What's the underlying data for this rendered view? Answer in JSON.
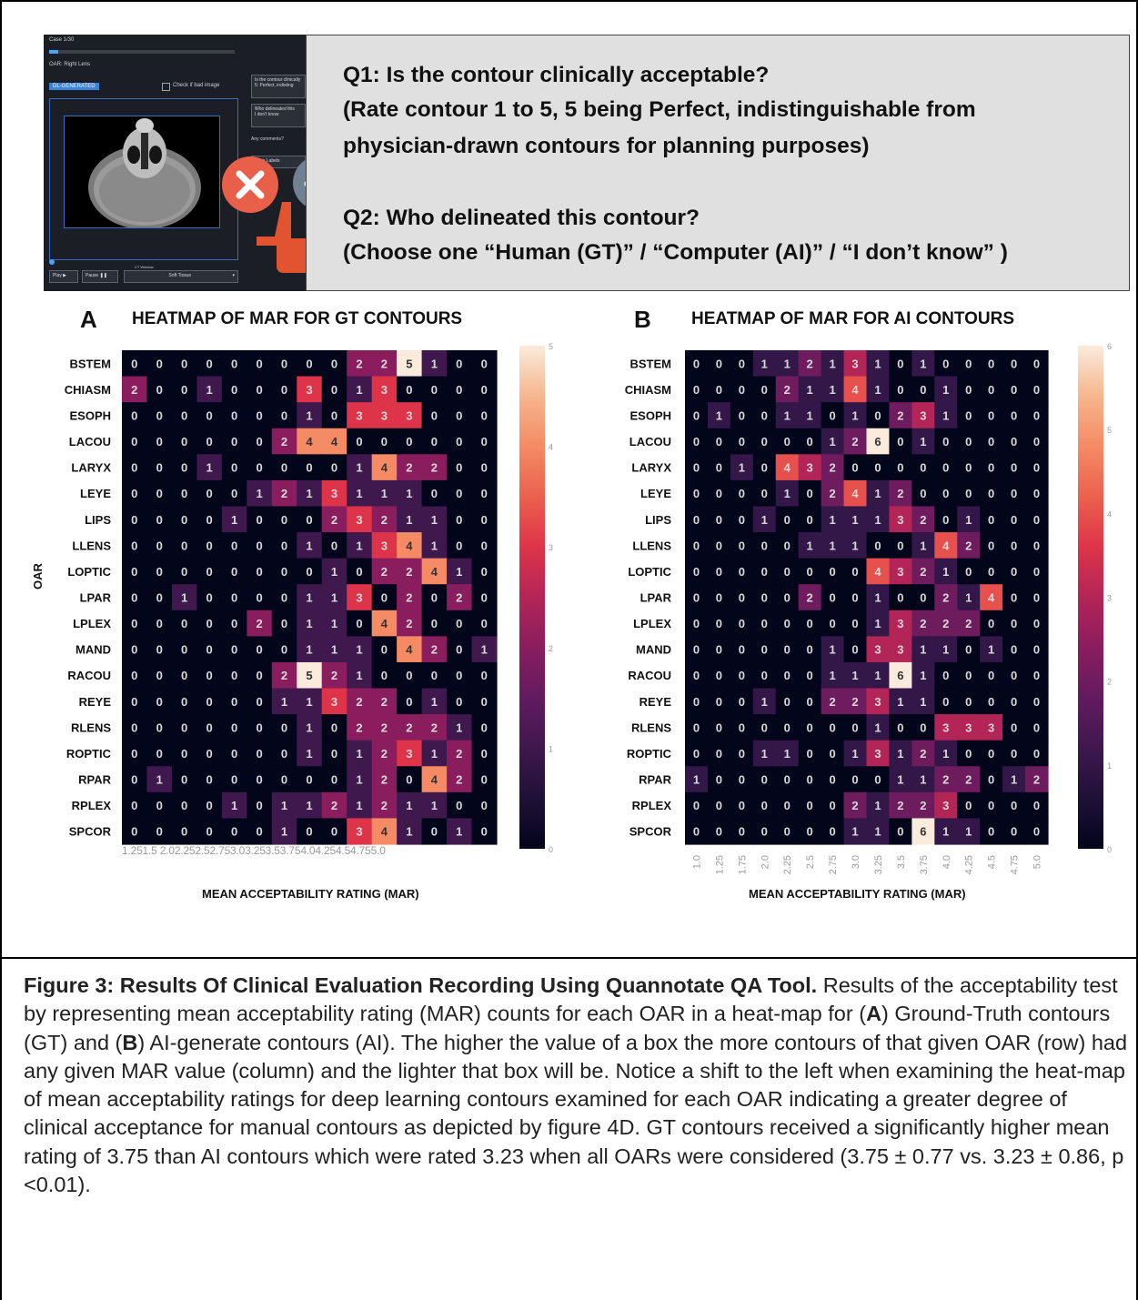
{
  "tool": {
    "case": "Case 1/30",
    "oar": "OAR: Right Lens",
    "tag": "DL-GENERATED",
    "checkbox": "Check if bad image",
    "q_small1": "Is the contour clinically",
    "q_small2": "5: Perfect, indisting",
    "q_small3": "Who delineated this",
    "q_small4": "I don't know",
    "q_small5": "Any comments?",
    "save": "Save Labels",
    "play": "Play ▶",
    "pause": "Pause ❚❚",
    "window": "Soft Tissue",
    "window_label": "CT Window"
  },
  "questions": {
    "q1_line1": "Q1: Is the contour clinically acceptable?",
    "q1_line2": "(Rate contour 1 to 5, 5 being Perfect, indistinguishable from",
    "q1_line3": "physician-drawn contours for planning purposes)",
    "q2_line1": "Q2: Who delineated this contour?",
    "q2_line2": "(Choose one “Human (GT)” / “Computer (AI)” / “I don’t know” )"
  },
  "colors": {
    "reject": "#e8604a",
    "accept": "#6f8192",
    "hand": "#e2542f"
  },
  "chart_data": [
    {
      "type": "heatmap",
      "panel": "A",
      "title": "HEATMAP OF MAR FOR GT CONTOURS",
      "xlabel": "MEAN ACCEPTABILITY RATING (MAR)",
      "ylabel": "OAR",
      "x": [
        "1.25",
        "1.5",
        "2.0",
        "2.25",
        "2.5",
        "2.75",
        "3.0",
        "3.25",
        "3.5",
        "3.75",
        "4.0",
        "4.25",
        "4.5",
        "4.75",
        "5.0"
      ],
      "y": [
        "BSTEM",
        "CHIASM",
        "ESOPH",
        "LACOU",
        "LARYX",
        "LEYE",
        "LIPS",
        "LLENS",
        "LOPTIC",
        "LPAR",
        "LPLEX",
        "MAND",
        "RACOU",
        "REYE",
        "RLENS",
        "ROPTIC",
        "RPAR",
        "RPLEX",
        "SPCOR"
      ],
      "values": [
        [
          0,
          0,
          0,
          0,
          0,
          0,
          0,
          0,
          0,
          2,
          2,
          5,
          1,
          0,
          0
        ],
        [
          2,
          0,
          0,
          1,
          0,
          0,
          0,
          3,
          0,
          1,
          3,
          0,
          0,
          0,
          0
        ],
        [
          0,
          0,
          0,
          0,
          0,
          0,
          0,
          1,
          0,
          3,
          3,
          3,
          0,
          0,
          0
        ],
        [
          0,
          0,
          0,
          0,
          0,
          0,
          2,
          4,
          4,
          0,
          0,
          0,
          0,
          0,
          0
        ],
        [
          0,
          0,
          0,
          1,
          0,
          0,
          0,
          0,
          0,
          1,
          4,
          2,
          2,
          0,
          0
        ],
        [
          0,
          0,
          0,
          0,
          0,
          1,
          2,
          1,
          3,
          1,
          1,
          1,
          0,
          0,
          0
        ],
        [
          0,
          0,
          0,
          0,
          1,
          0,
          0,
          0,
          2,
          3,
          2,
          1,
          1,
          0,
          0
        ],
        [
          0,
          0,
          0,
          0,
          0,
          0,
          0,
          1,
          0,
          1,
          3,
          4,
          1,
          0,
          0
        ],
        [
          0,
          0,
          0,
          0,
          0,
          0,
          0,
          0,
          1,
          0,
          2,
          2,
          4,
          1,
          0
        ],
        [
          0,
          0,
          1,
          0,
          0,
          0,
          0,
          1,
          1,
          3,
          0,
          2,
          0,
          2,
          0
        ],
        [
          0,
          0,
          0,
          0,
          0,
          2,
          0,
          1,
          1,
          0,
          4,
          2,
          0,
          0,
          0
        ],
        [
          0,
          0,
          0,
          0,
          0,
          0,
          0,
          1,
          1,
          1,
          0,
          4,
          2,
          0,
          1
        ],
        [
          0,
          0,
          0,
          0,
          0,
          0,
          2,
          5,
          2,
          1,
          0,
          0,
          0,
          0,
          0
        ],
        [
          0,
          0,
          0,
          0,
          0,
          0,
          1,
          1,
          3,
          2,
          2,
          0,
          1,
          0,
          0
        ],
        [
          0,
          0,
          0,
          0,
          0,
          0,
          0,
          1,
          0,
          2,
          2,
          2,
          2,
          1,
          0
        ],
        [
          0,
          0,
          0,
          0,
          0,
          0,
          0,
          1,
          0,
          1,
          2,
          3,
          1,
          2,
          0
        ],
        [
          0,
          1,
          0,
          0,
          0,
          0,
          0,
          0,
          0,
          1,
          2,
          0,
          4,
          2,
          0
        ],
        [
          0,
          0,
          0,
          0,
          1,
          0,
          1,
          1,
          2,
          1,
          2,
          1,
          1,
          0,
          0
        ],
        [
          0,
          0,
          0,
          0,
          0,
          0,
          1,
          0,
          0,
          3,
          4,
          1,
          0,
          1,
          0
        ]
      ],
      "colorbar": {
        "min": 0,
        "max": 5,
        "ticks": [
          "5",
          "4",
          "3",
          "2",
          "1",
          "0"
        ]
      },
      "x_tick_text": "1.251.5 2.02.252.52.753.03.253.53.754.04.254.54.755.0"
    },
    {
      "type": "heatmap",
      "panel": "B",
      "title": "HEATMAP OF MAR FOR AI CONTOURS",
      "xlabel": "MEAN ACCEPTABILITY RATING (MAR)",
      "ylabel": "",
      "x": [
        "1.0",
        "1.25",
        "1.75",
        "2.0",
        "2.25",
        "2.5",
        "2.75",
        "3.0",
        "3.25",
        "3.5",
        "3.75",
        "4.0",
        "4.25",
        "4.5",
        "4.75",
        "5.0"
      ],
      "y": [
        "BSTEM",
        "CHIASM",
        "ESOPH",
        "LACOU",
        "LARYX",
        "LEYE",
        "LIPS",
        "LLENS",
        "LOPTIC",
        "LPAR",
        "LPLEX",
        "MAND",
        "RACOU",
        "REYE",
        "RLENS",
        "ROPTIC",
        "RPAR",
        "RPLEX",
        "SPCOR"
      ],
      "values": [
        [
          0,
          0,
          0,
          1,
          1,
          2,
          1,
          3,
          1,
          0,
          1,
          0,
          0,
          0,
          0,
          0
        ],
        [
          0,
          0,
          0,
          0,
          2,
          1,
          1,
          4,
          1,
          0,
          0,
          1,
          0,
          0,
          0,
          0
        ],
        [
          0,
          1,
          0,
          0,
          1,
          1,
          0,
          1,
          0,
          2,
          3,
          1,
          0,
          0,
          0,
          0
        ],
        [
          0,
          0,
          0,
          0,
          0,
          0,
          1,
          2,
          6,
          0,
          1,
          0,
          0,
          0,
          0,
          0
        ],
        [
          0,
          0,
          1,
          0,
          4,
          3,
          2,
          0,
          0,
          0,
          0,
          0,
          0,
          0,
          0,
          0
        ],
        [
          0,
          0,
          0,
          0,
          1,
          0,
          2,
          4,
          1,
          2,
          0,
          0,
          0,
          0,
          0,
          0
        ],
        [
          0,
          0,
          0,
          1,
          0,
          0,
          1,
          1,
          1,
          3,
          2,
          0,
          1,
          0,
          0,
          0
        ],
        [
          0,
          0,
          0,
          0,
          0,
          1,
          1,
          1,
          0,
          0,
          1,
          4,
          2,
          0,
          0,
          0
        ],
        [
          0,
          0,
          0,
          0,
          0,
          0,
          0,
          0,
          4,
          3,
          2,
          1,
          0,
          0,
          0,
          0
        ],
        [
          0,
          0,
          0,
          0,
          0,
          2,
          0,
          0,
          1,
          0,
          0,
          2,
          1,
          4,
          0,
          0
        ],
        [
          0,
          0,
          0,
          0,
          0,
          0,
          0,
          0,
          1,
          3,
          2,
          2,
          2,
          0,
          0,
          0
        ],
        [
          0,
          0,
          0,
          0,
          0,
          0,
          1,
          0,
          3,
          3,
          1,
          1,
          0,
          1,
          0,
          0
        ],
        [
          0,
          0,
          0,
          0,
          0,
          0,
          1,
          1,
          1,
          6,
          1,
          0,
          0,
          0,
          0,
          0
        ],
        [
          0,
          0,
          0,
          1,
          0,
          0,
          2,
          2,
          3,
          1,
          1,
          0,
          0,
          0,
          0,
          0
        ],
        [
          0,
          0,
          0,
          0,
          0,
          0,
          0,
          0,
          1,
          0,
          0,
          3,
          3,
          3,
          0,
          0
        ],
        [
          0,
          0,
          0,
          1,
          1,
          0,
          0,
          1,
          3,
          1,
          2,
          1,
          0,
          0,
          0,
          0
        ],
        [
          1,
          0,
          0,
          0,
          0,
          0,
          0,
          0,
          0,
          1,
          1,
          2,
          2,
          0,
          1,
          2
        ],
        [
          0,
          0,
          0,
          0,
          0,
          0,
          0,
          2,
          1,
          2,
          2,
          3,
          0,
          0,
          0,
          0
        ],
        [
          0,
          0,
          0,
          0,
          0,
          0,
          0,
          1,
          1,
          0,
          6,
          1,
          1,
          0,
          0,
          0
        ]
      ],
      "colorbar": {
        "min": 0,
        "max": 6,
        "ticks": [
          "6",
          "5",
          "4",
          "3",
          "2",
          "1",
          "0"
        ]
      }
    }
  ],
  "caption": {
    "title": "Figure 3: Results Of Clinical Evaluation Recording Using Quannotate QA Tool.",
    "t1": " Results of the acceptability test by representing mean acceptability rating (MAR) counts for each OAR in a heat-map for (",
    "a": "A",
    "t2": ") Ground-Truth contours (GT) and (",
    "b": "B",
    "t3": ") AI-generate contours (AI). The higher the value of a box the more contours of that given OAR (row) had any given MAR value (column) and the lighter that box will be. Notice a shift to the left when examining the heat-map of mean acceptability ratings for deep learning contours examined for each OAR indicating a greater degree of clinical acceptance for manual contours as depicted by figure 4D. GT contours received a significantly higher mean rating of 3.75 than AI contours which were rated 3.23 when all OARs were considered (3.75 ± 0.77 vs. 3.23 ± 0.86, p <0.01)."
  }
}
